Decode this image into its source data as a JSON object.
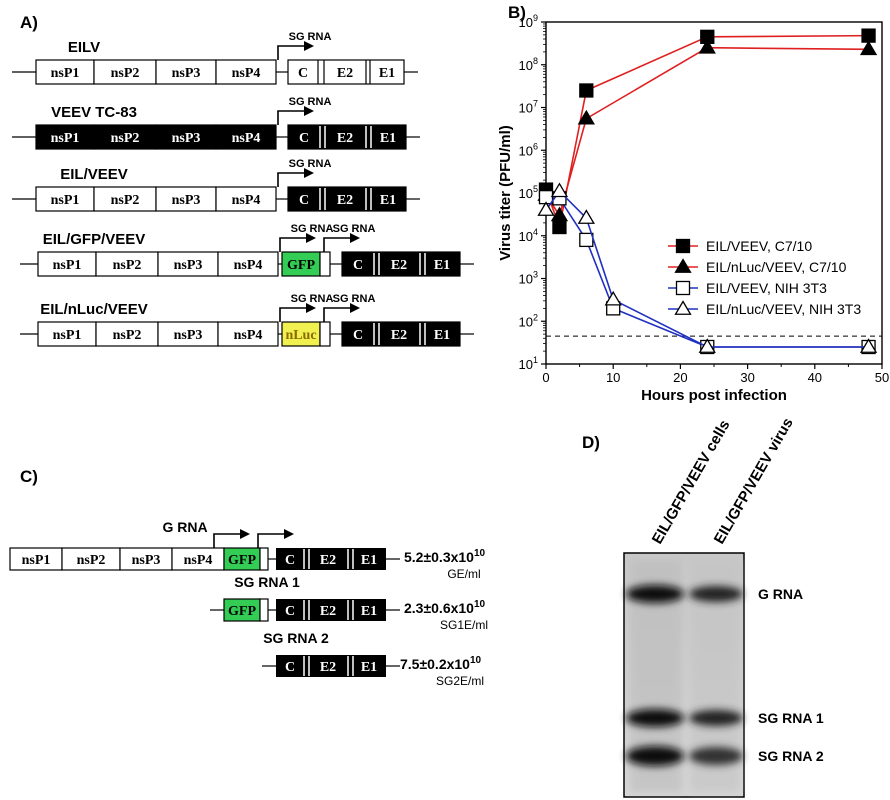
{
  "panels": {
    "a": "A)",
    "b": "B)",
    "c": "C)",
    "d": "D)"
  },
  "panel_a": {
    "sg_rna_label": "SG RNA",
    "constructs": [
      {
        "name": "EILV",
        "style": "open",
        "genes": [
          "nsP1",
          "nsP2",
          "nsP3",
          "nsP4",
          "C",
          "E2",
          "E1"
        ],
        "insert": ""
      },
      {
        "name": "VEEV TC-83",
        "style": "filled",
        "genes": [
          "nsP1",
          "nsP2",
          "nsP3",
          "nsP4",
          "C",
          "E2",
          "E1"
        ],
        "insert": ""
      },
      {
        "name": "EIL/VEEV",
        "style": "mixed",
        "genes": [
          "nsP1",
          "nsP2",
          "nsP3",
          "nsP4",
          "C",
          "E2",
          "E1"
        ],
        "insert": ""
      },
      {
        "name": "EIL/GFP/VEEV",
        "style": "mixed",
        "genes": [
          "nsP1",
          "nsP2",
          "nsP3",
          "nsP4",
          "C",
          "E2",
          "E1"
        ],
        "insert": "GFP"
      },
      {
        "name": "EIL/nLuc/VEEV",
        "style": "mixed",
        "genes": [
          "nsP1",
          "nsP2",
          "nsP3",
          "nsP4",
          "C",
          "E2",
          "E1"
        ],
        "insert": "nLuc"
      }
    ],
    "colors": {
      "gfp": "#33cc55",
      "nluc": "#f0f050",
      "filled": "#000000"
    }
  },
  "panel_c": {
    "rows": [
      {
        "label": "G RNA",
        "genes": [
          "nsP1",
          "nsP2",
          "nsP3",
          "nsP4",
          "GFP",
          "C",
          "E2",
          "E1"
        ],
        "value": "5.2±0.3x10",
        "exp": "10",
        "unit": "GE/ml"
      },
      {
        "label": "SG RNA 1",
        "genes": [
          "GFP",
          "C",
          "E2",
          "E1"
        ],
        "value": "2.3±0.6x10",
        "exp": "10",
        "unit": "SG1E/ml"
      },
      {
        "label": "SG RNA 2",
        "genes": [
          "C",
          "E2",
          "E1"
        ],
        "value": "7.5±0.2x10",
        "exp": "10",
        "unit": "SG2E/ml"
      }
    ]
  },
  "panel_d": {
    "lanes": [
      "EIL/GFP/VEEV cells",
      "EIL/GFP/VEEV virus"
    ],
    "bands": [
      "G RNA",
      "SG RNA 1",
      "SG RNA 2"
    ]
  },
  "chart_data": {
    "type": "line",
    "xlabel": "Hours post infection",
    "ylabel": "Virus titer (PFU/ml)",
    "yscale": "log",
    "xlim": [
      0,
      50
    ],
    "ylim": [
      10,
      1000000000
    ],
    "xticks": [
      0,
      10,
      20,
      30,
      40,
      50
    ],
    "yticks": [
      {
        "value": 10,
        "base": "10",
        "exp": "1"
      },
      {
        "value": 100,
        "base": "10",
        "exp": "2"
      },
      {
        "value": 1000,
        "base": "10",
        "exp": "3"
      },
      {
        "value": 10000,
        "base": "10",
        "exp": "4"
      },
      {
        "value": 100000,
        "base": "10",
        "exp": "5"
      },
      {
        "value": 1000000,
        "base": "10",
        "exp": "6"
      },
      {
        "value": 10000000,
        "base": "10",
        "exp": "7"
      },
      {
        "value": 100000000,
        "base": "10",
        "exp": "8"
      },
      {
        "value": 1000000000,
        "base": "10",
        "exp": "9"
      }
    ],
    "detection_limit": 45,
    "legend_position": "center-right",
    "series": [
      {
        "name": "EIL/VEEV, C7/10",
        "color": "#e02020",
        "marker": "square-filled",
        "x": [
          0,
          2,
          6,
          24,
          48
        ],
        "y": [
          120000,
          16000,
          25000000,
          450000000,
          480000000
        ]
      },
      {
        "name": "EIL/nLuc/VEEV, C7/10",
        "color": "#e02020",
        "marker": "triangle-filled",
        "x": [
          0,
          2,
          6,
          24,
          48
        ],
        "y": [
          90000,
          30000,
          5500000,
          250000000,
          230000000
        ]
      },
      {
        "name": "EIL/VEEV, NIH 3T3",
        "color": "#2030c0",
        "marker": "square-open",
        "x": [
          0,
          2,
          6,
          10,
          24,
          48
        ],
        "y": [
          80000,
          75000,
          8000,
          200,
          25,
          25
        ]
      },
      {
        "name": "EIL/nLuc/VEEV, NIH 3T3",
        "color": "#2030c0",
        "marker": "triangle-open",
        "x": [
          0,
          2,
          6,
          10,
          24,
          48
        ],
        "y": [
          40000,
          110000,
          26000,
          320,
          25,
          25
        ]
      }
    ]
  }
}
